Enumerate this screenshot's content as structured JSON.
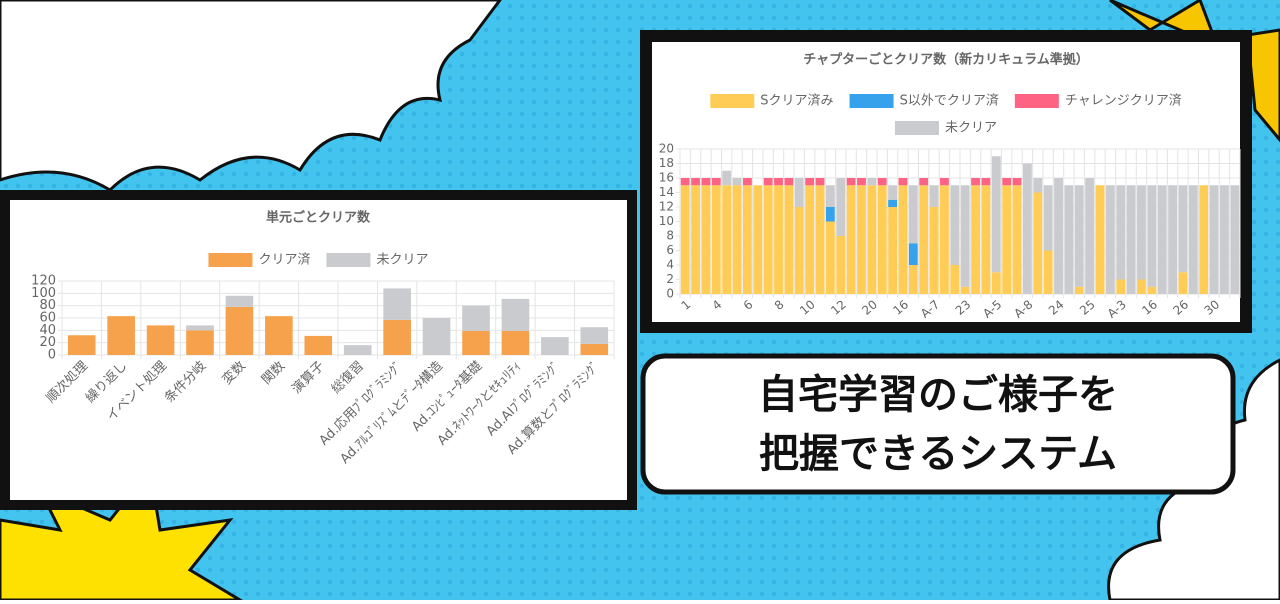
{
  "banner": {
    "lines": [
      "自宅学習のご様子を",
      "把握できるシステム"
    ]
  },
  "chart_data": [
    {
      "type": "bar",
      "stacked": true,
      "title": "単元ごとクリア数",
      "categories": [
        "順次処理",
        "繰り返し",
        "イベント処理",
        "条件分岐",
        "変数",
        "関数",
        "演算子",
        "総復習",
        "Ad.応用ﾌﾟﾛｸﾞﾗﾐﾝｸﾞ",
        "Ad.ｱﾙｺﾞﾘｽﾞﾑとﾃﾞｰﾀ構造",
        "Ad.ｺﾝﾋﾟｭｰﾀ基礎",
        "Ad.ﾈｯﾄﾜｰｸとｾｷｭﾘﾃｨ",
        "Ad.AIﾌﾟﾛｸﾞﾗﾐﾝｸﾞ",
        "Ad.算数とﾌﾟﾛｸﾞﾗﾐﾝｸﾞ"
      ],
      "series": [
        {
          "name": "クリア済",
          "color": "#f6a24c",
          "values": [
            32,
            63,
            48,
            40,
            78,
            63,
            31,
            0,
            57,
            0,
            39,
            39,
            0,
            18
          ]
        },
        {
          "name": "未クリア",
          "color": "#c9cbcf",
          "values": [
            0,
            0,
            0,
            8,
            18,
            0,
            0,
            16,
            51,
            60,
            41,
            52,
            29,
            27
          ]
        }
      ],
      "ylim": [
        0,
        120
      ],
      "yticks": [
        0,
        20,
        40,
        60,
        80,
        100,
        120
      ],
      "grid": true,
      "legend": "top"
    },
    {
      "type": "bar",
      "stacked": true,
      "title": "チャプターごとクリア数（新カリキュラム準拠）",
      "categories": [
        "1",
        null,
        null,
        "4",
        null,
        null,
        "6",
        null,
        null,
        "8",
        null,
        null,
        "10",
        null,
        null,
        "12",
        null,
        null,
        "20",
        null,
        null,
        "16",
        null,
        null,
        "A-7",
        null,
        null,
        "23",
        null,
        null,
        "A-5",
        null,
        null,
        "A-8",
        null,
        null,
        "24",
        null,
        null,
        "25",
        null,
        null,
        "A-3",
        null,
        null,
        "16",
        null,
        null,
        "26",
        null,
        null,
        "30",
        null,
        null
      ],
      "series": [
        {
          "name": "Sクリア済み",
          "color": "#ffcd56",
          "values": [
            15,
            15,
            15,
            15,
            15,
            15,
            15,
            15,
            15,
            15,
            15,
            12,
            15,
            15,
            10,
            8,
            15,
            15,
            15,
            15,
            12,
            15,
            4,
            15,
            12,
            15,
            4,
            1,
            15,
            15,
            3,
            15,
            15,
            0,
            14,
            6,
            0,
            0,
            1,
            0,
            15,
            0,
            2,
            0,
            2,
            1,
            0,
            0,
            3,
            0,
            15,
            0,
            0,
            0
          ]
        },
        {
          "name": "S以外でクリア済",
          "color": "#36a2eb",
          "values": [
            0,
            0,
            0,
            0,
            0,
            0,
            0,
            0,
            0,
            0,
            0,
            0,
            0,
            0,
            2,
            0,
            0,
            0,
            0,
            0,
            1,
            0,
            3,
            0,
            0,
            0,
            0,
            0,
            0,
            0,
            0,
            0,
            0,
            0,
            0,
            0,
            0,
            0,
            0,
            0,
            0,
            0,
            0,
            0,
            0,
            0,
            0,
            0,
            0,
            0,
            0,
            0,
            0,
            0
          ]
        },
        {
          "name": "チャレンジクリア済",
          "color": "#ff6384",
          "values": [
            1,
            1,
            1,
            1,
            0,
            0,
            1,
            0,
            1,
            1,
            1,
            0,
            1,
            1,
            0,
            0,
            1,
            1,
            0,
            1,
            0,
            1,
            0,
            1,
            0,
            1,
            0,
            0,
            1,
            1,
            0,
            1,
            1,
            0,
            0,
            0,
            0,
            0,
            0,
            0,
            0,
            0,
            0,
            0,
            0,
            0,
            0,
            0,
            0,
            0,
            0,
            0,
            0,
            0
          ]
        },
        {
          "name": "未クリア",
          "color": "#c9cbcf",
          "values": [
            0,
            0,
            0,
            0,
            2,
            1,
            0,
            0,
            0,
            0,
            0,
            4,
            0,
            0,
            3,
            8,
            0,
            0,
            1,
            0,
            2,
            0,
            8,
            0,
            3,
            0,
            11,
            14,
            0,
            0,
            16,
            0,
            0,
            18,
            2,
            9,
            16,
            15,
            14,
            16,
            0,
            15,
            13,
            15,
            13,
            14,
            15,
            15,
            12,
            15,
            0,
            15,
            15,
            15
          ]
        }
      ],
      "ylim": [
        0,
        20
      ],
      "yticks": [
        0,
        2,
        4,
        6,
        8,
        10,
        12,
        14,
        16,
        18,
        20
      ],
      "grid": true,
      "legend": "top"
    }
  ]
}
